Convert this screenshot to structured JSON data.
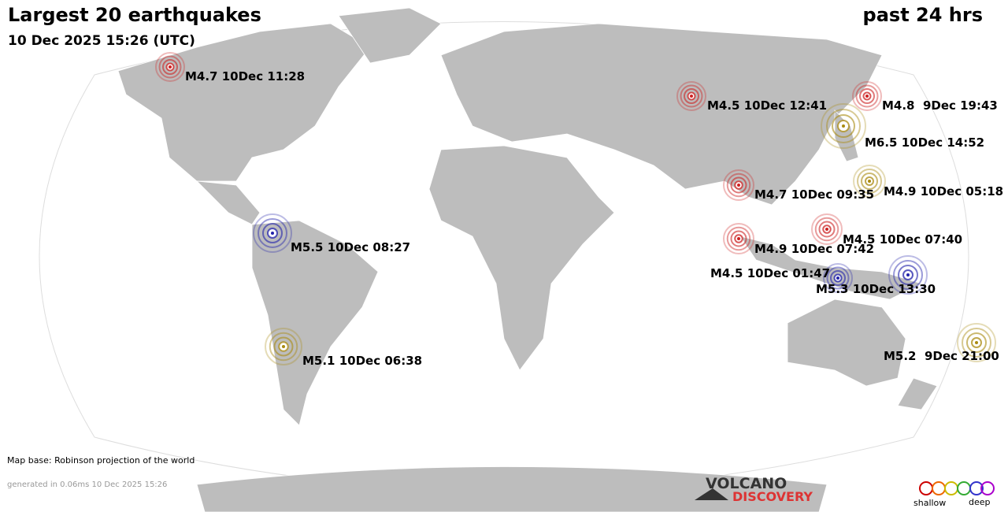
{
  "header": {
    "title": "Largest 20 earthquakes",
    "period": "past 24 hrs",
    "datetime": "10 Dec 2025 15:26 (UTC)"
  },
  "quakes": [
    {
      "label": "M4.7 10Dec 11:28"
    },
    {
      "label": "M4.5 10Dec 12:41"
    },
    {
      "label": "M4.8  9Dec 19:43"
    },
    {
      "label": "M6.5 10Dec 14:52"
    },
    {
      "label": "M4.9 10Dec 05:18"
    },
    {
      "label": "M4.7 10Dec 09:35"
    },
    {
      "label": "M5.5 10Dec 08:27"
    },
    {
      "label": "M4.5 10Dec 07:40"
    },
    {
      "label": "M4.9 10Dec 07:42"
    },
    {
      "label": "M4.5 10Dec 01:47"
    },
    {
      "label": "M5.3 10Dec 13:30"
    },
    {
      "label": "M5.1 10Dec 06:38"
    },
    {
      "label": "M5.2  9Dec 21:00"
    }
  ],
  "footer": {
    "map_base": "Map base: Robinson projection of the world",
    "generated": "generated in 0.06ms 10 Dec 2025 15:26"
  },
  "logo": {
    "line1": "VOLCANO",
    "line2": "DISCOVERY"
  },
  "legend": {
    "shallow": "shallow",
    "deep": "deep"
  }
}
